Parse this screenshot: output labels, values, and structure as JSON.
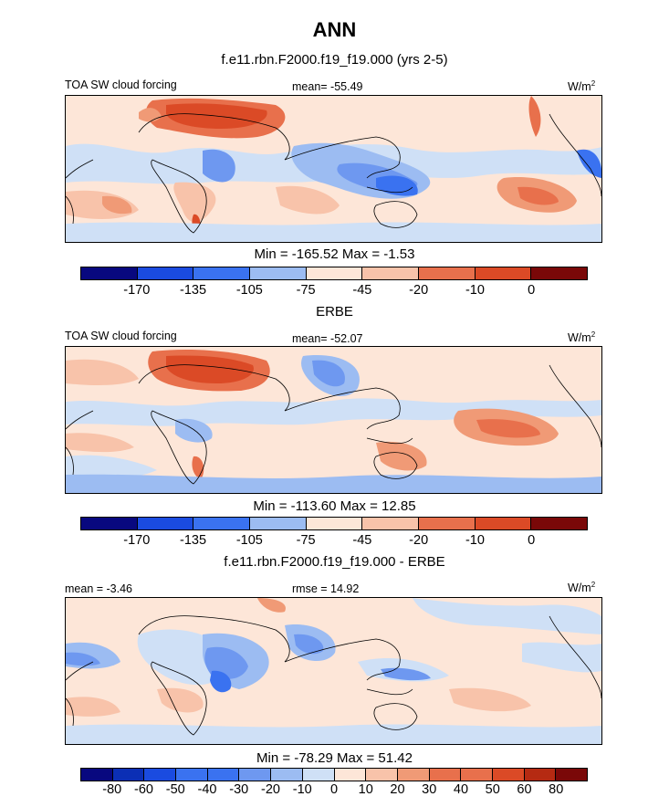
{
  "page": {
    "title": "ANN"
  },
  "colors": [
    "#08087f",
    "#0b2fb5",
    "#1a4be0",
    "#3a72f0",
    "#6e98f0",
    "#9cbcf2",
    "#cfe0f6",
    "#fde6d8",
    "#f8c3aa",
    "#f09a76",
    "#e8704c",
    "#db4a26",
    "#b52a12",
    "#7a0808"
  ],
  "panels": [
    {
      "subtitle": "f.e11.rbn.F2000.f19_f19.000 (yrs 2-5)",
      "left_label": "TOA SW cloud forcing",
      "center_label": "mean= -55.49",
      "units": "W/m",
      "units_exp": "2",
      "minmax": "Min = -165.52 Max =  -1.53",
      "ticks": [
        "-170",
        "-135",
        "-105",
        "-75",
        "-45",
        "-20",
        "-10",
        "0"
      ]
    },
    {
      "subtitle": "ERBE",
      "left_label": "TOA SW cloud forcing",
      "center_label": "mean= -52.07",
      "units": "W/m",
      "units_exp": "2",
      "minmax": "Min = -113.60 Max =  12.85",
      "ticks": [
        "-170",
        "-135",
        "-105",
        "-75",
        "-45",
        "-20",
        "-10",
        "0"
      ]
    },
    {
      "subtitle": "f.e11.rbn.F2000.f19_f19.000 - ERBE",
      "left_label": "mean =  -3.46",
      "center_label": "rmse =  14.92",
      "units": "W/m",
      "units_exp": "2",
      "minmax": "Min = -78.29 Max =  51.42",
      "ticks": [
        "-80",
        "-60",
        "-50",
        "-40",
        "-30",
        "-20",
        "-10",
        "0",
        "10",
        "20",
        "30",
        "40",
        "50",
        "60",
        "80"
      ]
    }
  ],
  "chart_data": [
    {
      "type": "heatmap",
      "title": "f.e11.rbn.F2000.f19_f19.000 (yrs 2-5)",
      "variable": "TOA SW cloud forcing",
      "units": "W/m2",
      "mean": -55.49,
      "min": -165.52,
      "max": -1.53,
      "contour_levels": [
        -170,
        -135,
        -105,
        -75,
        -45,
        -20,
        -10,
        0
      ]
    },
    {
      "type": "heatmap",
      "title": "ERBE",
      "variable": "TOA SW cloud forcing",
      "units": "W/m2",
      "mean": -52.07,
      "min": -113.6,
      "max": 12.85,
      "contour_levels": [
        -170,
        -135,
        -105,
        -75,
        -45,
        -20,
        -10,
        0
      ]
    },
    {
      "type": "heatmap",
      "title": "f.e11.rbn.F2000.f19_f19.000 - ERBE",
      "units": "W/m2",
      "mean": -3.46,
      "rmse": 14.92,
      "min": -78.29,
      "max": 51.42,
      "contour_levels": [
        -80,
        -60,
        -50,
        -40,
        -30,
        -20,
        -10,
        0,
        10,
        20,
        30,
        40,
        50,
        60,
        80
      ]
    }
  ]
}
